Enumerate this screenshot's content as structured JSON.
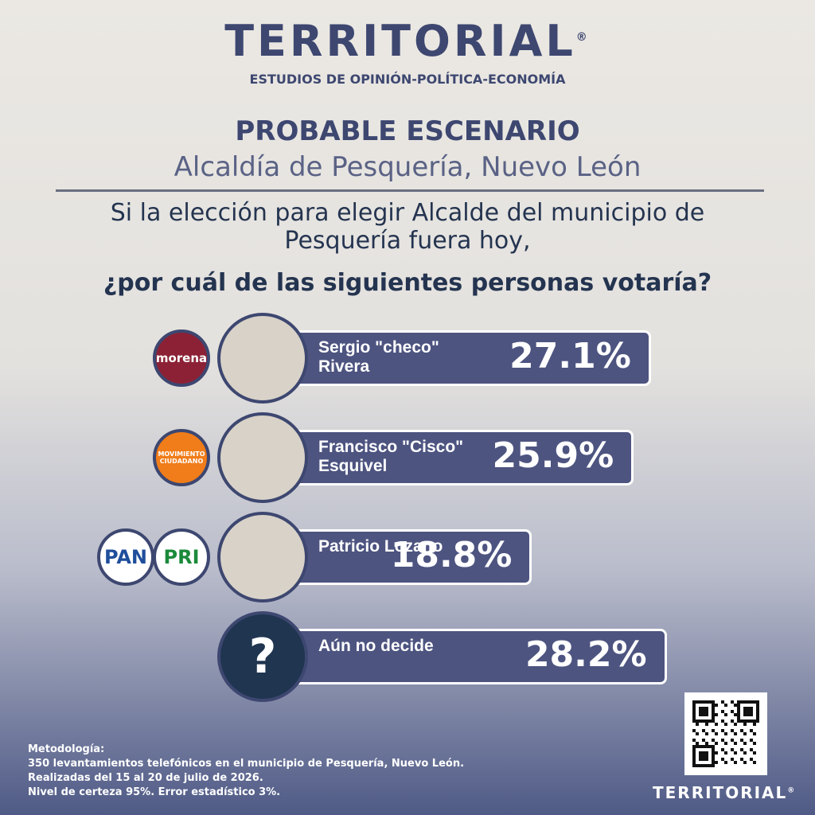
{
  "header": {
    "brand": "TERRITORIAL",
    "brand_mark": "®",
    "tagline": "ESTUDIOS DE OPINIÓN-POLÍTICA-ECONOMÍA",
    "title": "PROBABLE ESCENARIO",
    "subtitle": "Alcaldía de Pesquería, Nuevo León",
    "question": "Si la elección para elegir Alcalde del municipio de Pesquería fuera hoy,",
    "question_bold": "¿por cuál de las siguientes personas votaría?"
  },
  "chart_data": {
    "type": "bar",
    "orientation": "horizontal",
    "categories": [
      "Sergio \"checo\" Rivera",
      "Francisco \"Cisco\" Esquivel",
      "Patricio Lozano",
      "Aún no decide"
    ],
    "values": [
      27.1,
      25.9,
      18.8,
      28.2
    ],
    "value_labels": [
      "27.1%",
      "25.9%",
      "18.8%",
      "28.2%"
    ],
    "color": "#4d5480",
    "parties": [
      [
        "morena"
      ],
      [
        "MOVIMIENTO CIUDADANO"
      ],
      [
        "PAN",
        "PRI"
      ],
      []
    ],
    "unknown_symbol": "?"
  },
  "footer": {
    "methodology_title": "Metodología:",
    "methodology": [
      "350 levantamientos telefónicos en el municipio de Pesquería, Nuevo León.",
      "Realizadas del 15 al 20 de julio de 2026.",
      "Nivel de certeza 95%.  Error estadístico 3%."
    ],
    "brand": "TERRITORIAL",
    "brand_mark": "®"
  }
}
